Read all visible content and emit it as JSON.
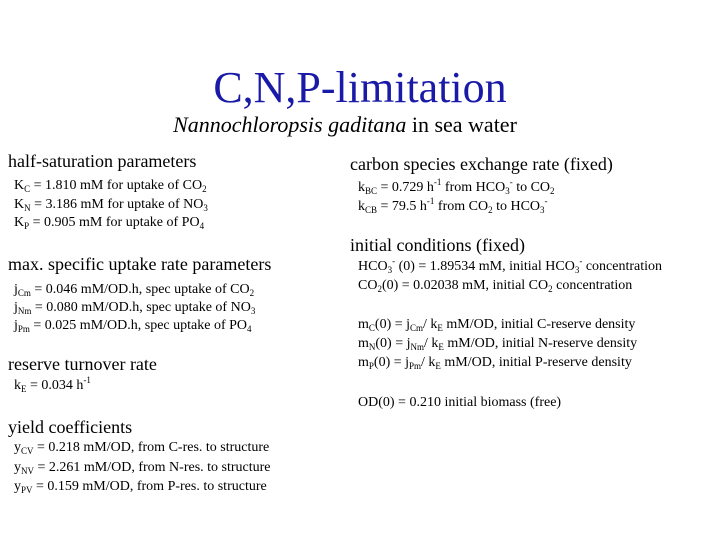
{
  "title": "C,N,P-limitation",
  "subtitle": {
    "species": "Nannochloropsis gaditana",
    "rest": " in sea water"
  },
  "left": {
    "half_sat": {
      "heading": "half-saturation parameters",
      "lines": [
        {
          "sym": "K",
          "sub": "C",
          "text": " = 1.810 mM for uptake of CO",
          "tail_sub": "2"
        },
        {
          "sym": "K",
          "sub": "N",
          "text": " = 3.186 mM for uptake of NO",
          "tail_sub": "3"
        },
        {
          "sym": "K",
          "sub": "P",
          "text": " =  0.905 mM for uptake of PO",
          "tail_sub": "4"
        }
      ]
    },
    "uptake": {
      "heading": "max. specific uptake rate parameters",
      "lines": [
        {
          "sym": "j",
          "sub": "Cm",
          "text": " = 0.046 mM/OD.h, spec uptake of CO",
          "tail_sub": "2"
        },
        {
          "sym": "j",
          "sub": "Nm",
          "text": " = 0.080 mM/OD.h, spec uptake of NO",
          "tail_sub": "3"
        },
        {
          "sym": "j",
          "sub": "Pm",
          "text": " = 0.025 mM/OD.h, spec uptake of PO",
          "tail_sub": "4"
        }
      ]
    },
    "turnover": {
      "heading": "reserve turnover rate",
      "line": {
        "sym": "k",
        "sub": "E",
        "text": " = 0.034 h",
        "sup": "-1"
      }
    },
    "yield": {
      "heading": "yield coefficients",
      "lines": [
        {
          "sym": "y",
          "sub": "CV",
          "text": "  = 0.218 mM/OD, from C-res. to structure"
        },
        {
          "sym": "y",
          "sub": "NV",
          "text": "  = 2.261 mM/OD, from N-res. to structure"
        },
        {
          "sym": "y",
          "sub": "PV",
          "text": "  =  0.159 mM/OD, from P-res. to structure"
        }
      ]
    }
  },
  "right": {
    "exchange": {
      "heading": "carbon species exchange rate (fixed)",
      "l1": {
        "a": "k",
        "a_sub": "BC",
        "b": " =  0.729 h",
        "b_sup": "-1",
        "c": " from HCO",
        "c_sub": "3",
        "c_sup": "-",
        "d": " to CO",
        "d_sub": "2"
      },
      "l2": {
        "a": "k",
        "a_sub": "CB",
        "b": " = 79.5   h",
        "b_sup": "-1",
        "c": " from CO",
        "c_sub": "2",
        "d": " to HCO",
        "d_sub": "3",
        "d_sup": "-"
      }
    },
    "initial": {
      "heading": "initial conditions (fixed)",
      "hco3": {
        "a": "HCO",
        "a_sub": "3",
        "a_sup": "-",
        "b": " (0) = 1.89534 mM, initial HCO",
        "b_sub": "3",
        "b_sup": "-",
        "c": " concentration"
      },
      "co2": {
        "a": "CO",
        "a_sub": "2",
        "b": "(0) = 0.02038 mM, initial CO",
        "b_sub": "2",
        "c": " concentration"
      },
      "reserves": [
        {
          "a": "m",
          "a_sub": "C",
          "b": "(0) =  j",
          "b_sub": "Cm",
          "c": "/ k",
          "c_sub": "E",
          "d": "  mM/OD, initial C-reserve density"
        },
        {
          "a": "m",
          "a_sub": "N",
          "b": "(0) =  j",
          "b_sub": "Nm",
          "c": "/ k",
          "c_sub": "E",
          "d": "  mM/OD, initial N-reserve density"
        },
        {
          "a": "m",
          "a_sub": "P",
          "b": "(0) =  j",
          "b_sub": "Pm",
          "c": "/ k",
          "c_sub": "E",
          "d": "  mM/OD, initial P-reserve density"
        }
      ],
      "od": "OD(0) =  0.210 initial biomass (free)"
    }
  }
}
